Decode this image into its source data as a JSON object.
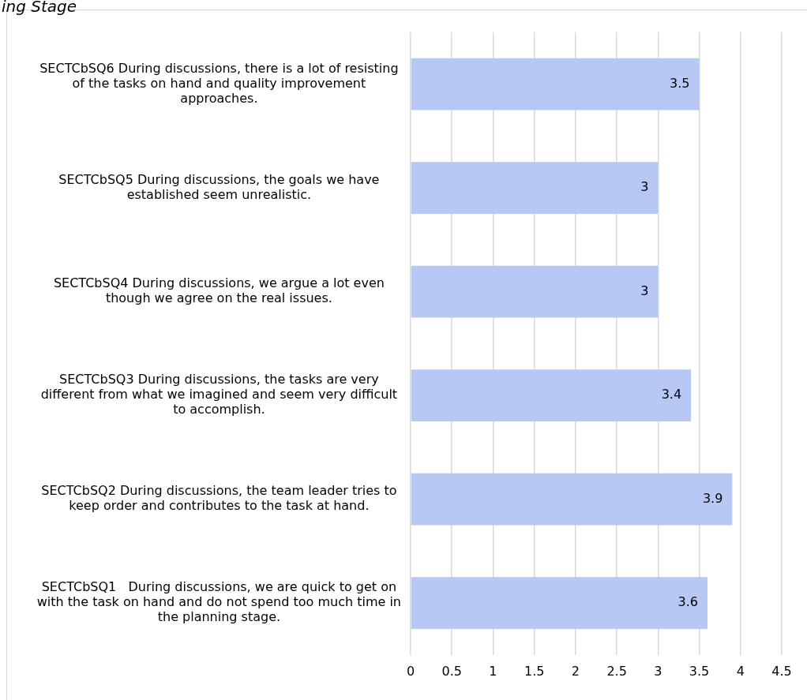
{
  "chart_data": {
    "type": "bar",
    "orientation": "horizontal",
    "title": "ing Stage",
    "categories": [
      "SECTCbSQ6 During discussions, there is a lot of resisting of the tasks on hand and quality improvement approaches.",
      "SECTCbSQ5 During discussions, the goals we have established seem unrealistic.",
      "SECTCbSQ4 During discussions, we argue a lot even though we agree on the real issues.",
      "SECTCbSQ3 During discussions, the tasks are very different from what we imagined and seem very difficult to accomplish.",
      "SECTCbSQ2 During discussions, the team leader tries to keep order and contributes to the task at hand.",
      "SECTCbSQ1   During discussions, we are quick to get on with the task on hand and do not spend too much time in the planning stage."
    ],
    "values": [
      3.5,
      3,
      3,
      3.4,
      3.9,
      3.6
    ],
    "color": "#b7c8f4",
    "xlim": [
      0,
      4.5
    ],
    "xticks": [
      0,
      0.5,
      1,
      1.5,
      2,
      2.5,
      3,
      3.5,
      4,
      4.5
    ],
    "grid": "x",
    "data_labels": true,
    "legend": false
  }
}
